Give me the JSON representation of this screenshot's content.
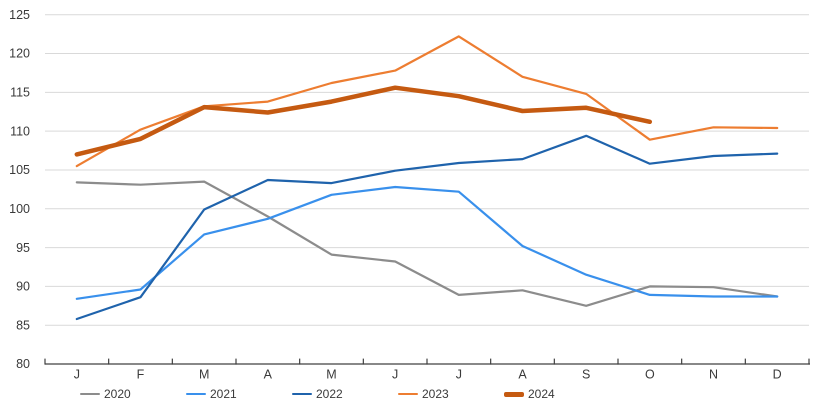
{
  "page": {
    "background": "#FFFFFF"
  },
  "chart_data": {
    "type": "line",
    "title": "",
    "xlabel": "",
    "ylabel": "",
    "categories": [
      "J",
      "F",
      "M",
      "A",
      "M",
      "J",
      "J",
      "A",
      "S",
      "O",
      "N",
      "D"
    ],
    "yticks": [
      80,
      85,
      90,
      95,
      100,
      105,
      110,
      115,
      120,
      125
    ],
    "ylim": [
      80,
      125
    ],
    "grid": "horizontal",
    "legend_position": "bottom",
    "axis_color": "#404040",
    "gridline_color": "#D9D9D9",
    "text_color": "#3A3A3A",
    "series": [
      {
        "name": "2020",
        "color": "#8C8C8C",
        "width": 2.2,
        "values": [
          103.4,
          103.1,
          103.5,
          99.0,
          94.1,
          93.2,
          88.9,
          89.5,
          87.5,
          90.0,
          89.9,
          88.7
        ]
      },
      {
        "name": "2021",
        "color": "#3990EC",
        "width": 2.2,
        "values": [
          88.4,
          89.6,
          96.7,
          98.7,
          101.8,
          102.8,
          102.2,
          95.2,
          91.5,
          88.9,
          88.7,
          88.7
        ]
      },
      {
        "name": "2022",
        "color": "#1F63AC",
        "width": 2.2,
        "values": [
          85.8,
          88.6,
          99.9,
          103.7,
          103.3,
          104.9,
          105.9,
          106.4,
          109.4,
          105.8,
          106.8,
          107.1
        ]
      },
      {
        "name": "2023",
        "color": "#ED7D31",
        "width": 2.2,
        "values": [
          105.5,
          110.2,
          113.2,
          113.8,
          116.2,
          117.8,
          122.2,
          117.0,
          114.8,
          108.9,
          110.5,
          110.4
        ]
      },
      {
        "name": "2024",
        "color": "#C55A11",
        "width": 4.5,
        "values": [
          107.0,
          109.0,
          113.1,
          112.4,
          113.8,
          115.6,
          114.5,
          112.6,
          113.0,
          111.2
        ]
      }
    ]
  }
}
